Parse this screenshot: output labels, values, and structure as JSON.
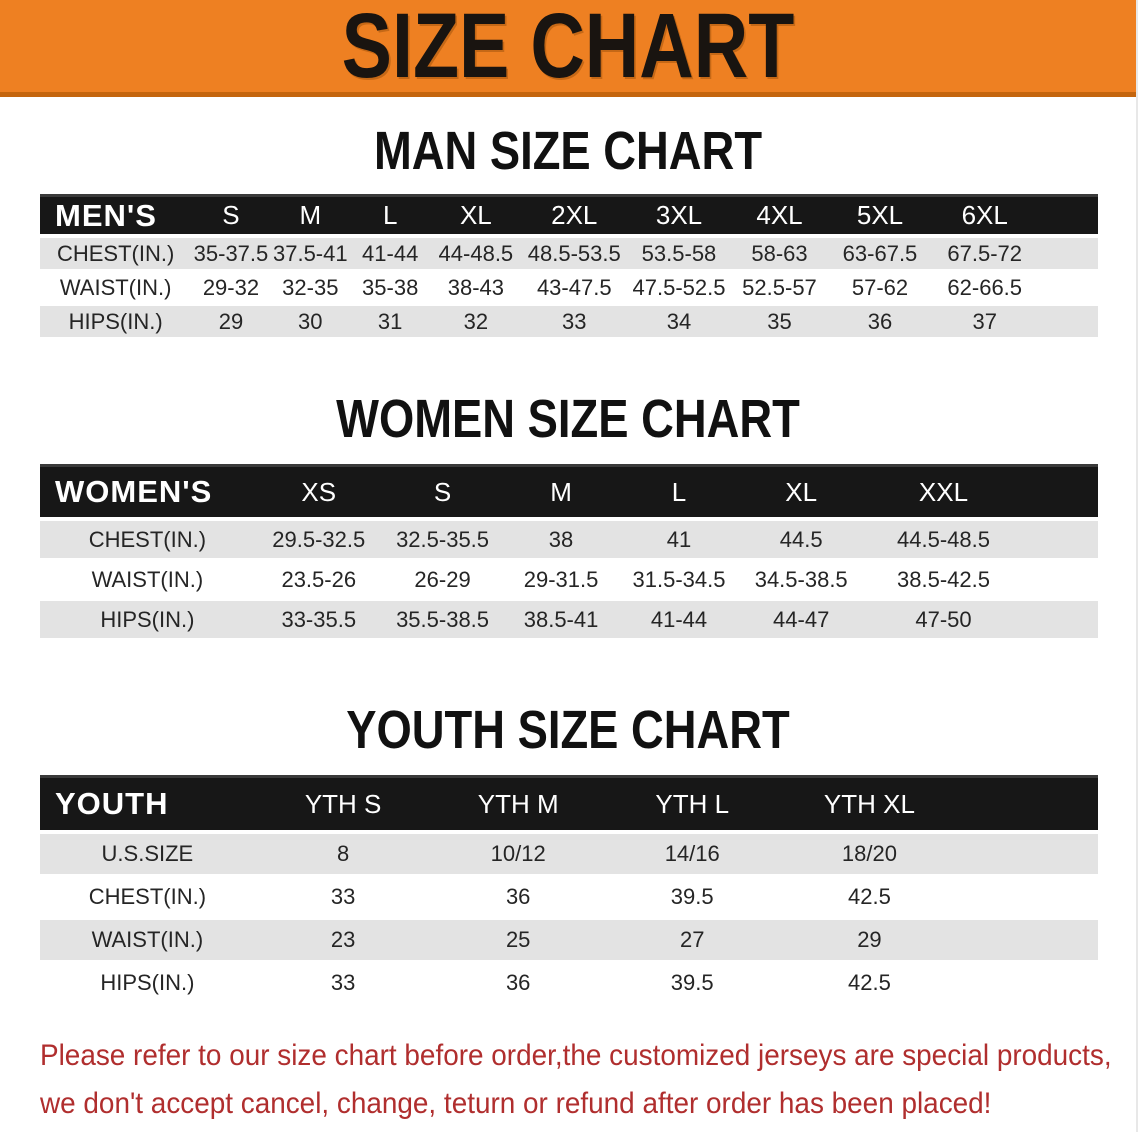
{
  "banner": {
    "title": "SIZE CHART"
  },
  "colors": {
    "banner_bg": "#EE8022",
    "banner_edge": "#C4650E",
    "table_header_bg": "#171717",
    "table_header_text": "#FFFFFF",
    "row_alt_bg": "#E3E3E3",
    "row_bg": "#FFFFFF",
    "title_text": "#111111",
    "disclaimer_red": "#B02E2E"
  },
  "men": {
    "section_title": "MAN SIZE CHART",
    "header": [
      "MEN'S",
      "S",
      "M",
      "L",
      "XL",
      "2XL",
      "3XL",
      "4XL",
      "5XL",
      "6XL"
    ],
    "rows": [
      [
        "CHEST(IN.)",
        "35-37.5",
        "37.5-41",
        "41-44",
        "44-48.5",
        "48.5-53.5",
        "53.5-58",
        "58-63",
        "63-67.5",
        "67.5-72"
      ],
      [
        "WAIST(IN.)",
        "29-32",
        "32-35",
        "35-38",
        "38-43",
        "43-47.5",
        "47.5-52.5",
        "52.5-57",
        "57-62",
        "62-66.5"
      ],
      [
        "HIPS(IN.)",
        "29",
        "30",
        "31",
        "32",
        "33",
        "34",
        "35",
        "36",
        "37"
      ]
    ]
  },
  "women": {
    "section_title": "WOMEN SIZE CHART",
    "header": [
      "WOMEN'S",
      "XS",
      "S",
      "M",
      "L",
      "XL",
      "XXL"
    ],
    "rows": [
      [
        "CHEST(IN.)",
        "29.5-32.5",
        "32.5-35.5",
        "38",
        "41",
        "44.5",
        "44.5-48.5"
      ],
      [
        "WAIST(IN.)",
        "23.5-26",
        "26-29",
        "29-31.5",
        "31.5-34.5",
        "34.5-38.5",
        "38.5-42.5"
      ],
      [
        "HIPS(IN.)",
        "33-35.5",
        "35.5-38.5",
        "38.5-41",
        "41-44",
        "44-47",
        "47-50"
      ]
    ]
  },
  "youth": {
    "section_title": "YOUTH SIZE CHART",
    "header": [
      "YOUTH",
      "YTH S",
      "YTH M",
      "YTH L",
      "YTH XL"
    ],
    "rows": [
      [
        "U.S.SIZE",
        "8",
        "10/12",
        "14/16",
        "18/20"
      ],
      [
        "CHEST(IN.)",
        "33",
        "36",
        "39.5",
        "42.5"
      ],
      [
        "WAIST(IN.)",
        "23",
        "25",
        "27",
        "29"
      ],
      [
        "HIPS(IN.)",
        "33",
        "36",
        "39.5",
        "42.5"
      ]
    ]
  },
  "disclaimer": {
    "line1": "Please refer to our size chart before order,the customized jerseys are special products,",
    "line2": "we don't accept cancel, change, teturn or refund after order has been placed!"
  }
}
